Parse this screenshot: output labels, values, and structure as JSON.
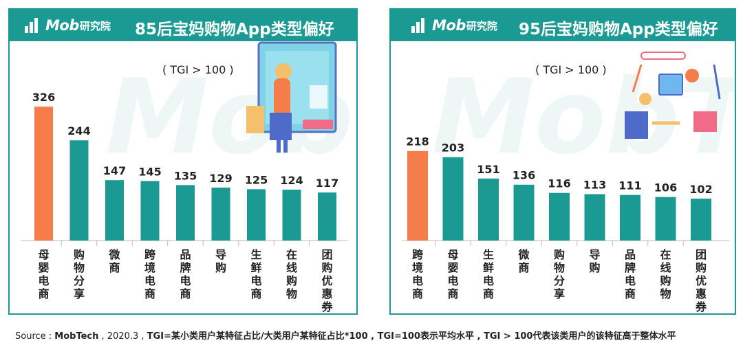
{
  "brand": {
    "logo_text": "Mob",
    "logo_sub": "研究院",
    "watermark": "MobTech"
  },
  "colors": {
    "teal": "#1a9a93",
    "orange": "#f47d4a"
  },
  "panels": [
    {
      "title": "85后宝妈购物App类型偏好",
      "note": "( TGI > 100 )"
    },
    {
      "title": "95后宝妈购物App类型偏好",
      "note": "( TGI > 100 )"
    }
  ],
  "chart_data": [
    {
      "type": "bar",
      "title": "85后宝妈购物App类型偏好",
      "annotation": "( TGI > 100 )",
      "categories": [
        "母婴电商",
        "购物分享",
        "微商",
        "跨境电商",
        "品牌电商",
        "导购",
        "生鲜电商",
        "在线购物",
        "团购优惠券"
      ],
      "values": [
        326,
        244,
        147,
        145,
        135,
        129,
        125,
        124,
        117
      ],
      "highlight_index": 0,
      "ylim": [
        0,
        400
      ]
    },
    {
      "type": "bar",
      "title": "95后宝妈购物App类型偏好",
      "annotation": "( TGI > 100 )",
      "categories": [
        "跨境电商",
        "母婴电商",
        "生鲜电商",
        "微商",
        "购物分享",
        "导购",
        "品牌电商",
        "在线购物",
        "团购优惠券"
      ],
      "values": [
        218,
        203,
        151,
        136,
        116,
        113,
        111,
        106,
        102
      ],
      "highlight_index": 0,
      "ylim": [
        0,
        400
      ]
    }
  ],
  "source": {
    "prefix": "Source : ",
    "org": "MobTech",
    "date": " , 2020.3 , ",
    "definition": "TGI=某小类用户某特征占比/大类用户某特征占比*100 , TGI=100表示平均水平 , TGI > 100代表该类用户的该特征高于整体水平"
  }
}
